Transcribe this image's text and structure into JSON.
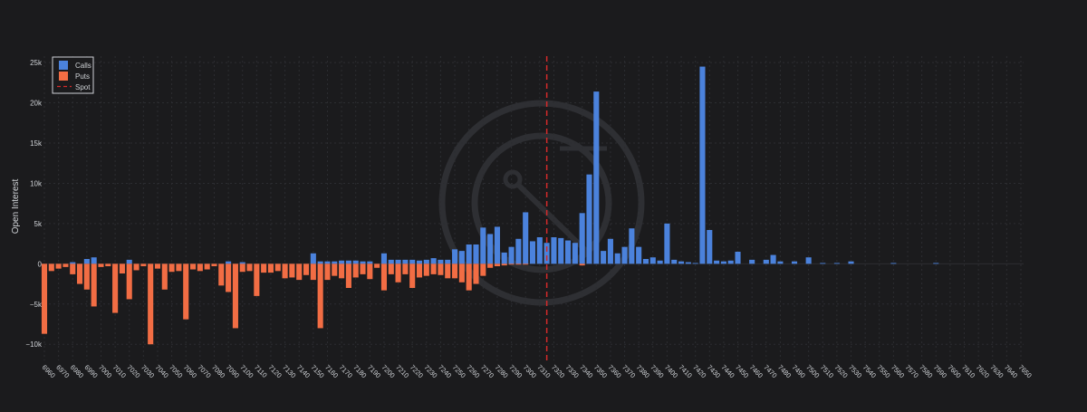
{
  "colors": {
    "background": "#1b1b1d",
    "calls": "#4b82dc",
    "puts": "#f26d44",
    "spot": "#d42a2a",
    "grid": "#2c2d31",
    "text": "#cfd2d6",
    "watermark": "#2e2f33"
  },
  "chart_data": {
    "type": "bar",
    "title": "",
    "xlabel": "",
    "ylabel": "Open Interest",
    "ylim": [
      -12000,
      25800
    ],
    "yticks": [
      -10000,
      -5000,
      0,
      5000,
      10000,
      15000,
      20000,
      25000
    ],
    "ytick_labels": [
      "−10k",
      "−5k",
      "0",
      "5k",
      "10k",
      "15k",
      "20k",
      "25k"
    ],
    "grid": true,
    "legend_position": "top-left",
    "spot": 7315,
    "x_tick_labels": [
      6960,
      6970,
      6980,
      6990,
      7000,
      7010,
      7020,
      7030,
      7040,
      7050,
      7060,
      7070,
      7080,
      7090,
      7100,
      7110,
      7120,
      7130,
      7140,
      7150,
      7160,
      7170,
      7180,
      7190,
      7200,
      7210,
      7220,
      7230,
      7240,
      7250,
      7260,
      7270,
      7280,
      7290,
      7300,
      7310,
      7320,
      7330,
      7340,
      7350,
      7360,
      7370,
      7380,
      7390,
      7400,
      7410,
      7420,
      7430,
      7440,
      7450,
      7460,
      7470,
      7480,
      7490,
      7500,
      7510,
      7520,
      7530,
      7540,
      7550,
      7560,
      7570,
      7580,
      7590,
      7600,
      7610,
      7620,
      7630,
      7640,
      7650
    ],
    "strikes": [
      6960,
      6965,
      6970,
      6975,
      6980,
      6985,
      6990,
      6995,
      7000,
      7005,
      7010,
      7015,
      7020,
      7025,
      7030,
      7035,
      7040,
      7045,
      7050,
      7055,
      7060,
      7065,
      7070,
      7075,
      7080,
      7085,
      7090,
      7095,
      7100,
      7105,
      7110,
      7115,
      7120,
      7125,
      7130,
      7135,
      7140,
      7145,
      7150,
      7155,
      7160,
      7165,
      7170,
      7175,
      7180,
      7185,
      7190,
      7195,
      7200,
      7205,
      7210,
      7215,
      7220,
      7225,
      7230,
      7235,
      7240,
      7245,
      7250,
      7255,
      7260,
      7265,
      7270,
      7275,
      7280,
      7285,
      7290,
      7295,
      7300,
      7305,
      7310,
      7315,
      7320,
      7325,
      7330,
      7335,
      7340,
      7345,
      7350,
      7355,
      7360,
      7365,
      7370,
      7375,
      7380,
      7385,
      7390,
      7395,
      7400,
      7405,
      7410,
      7415,
      7420,
      7425,
      7430,
      7435,
      7440,
      7445,
      7450,
      7455,
      7460,
      7465,
      7470,
      7475,
      7480,
      7485,
      7490,
      7495,
      7500,
      7505,
      7510,
      7515,
      7520,
      7525,
      7530,
      7535,
      7540,
      7545,
      7550,
      7555,
      7560,
      7565,
      7570,
      7575,
      7580,
      7585,
      7590,
      7595,
      7600,
      7605,
      7610,
      7615,
      7620,
      7625,
      7630,
      7635,
      7640,
      7645,
      7650
    ],
    "series": [
      {
        "name": "Calls",
        "values": [
          0,
          0,
          0,
          0,
          200,
          0,
          600,
          800,
          0,
          0,
          0,
          0,
          500,
          0,
          0,
          0,
          0,
          0,
          0,
          0,
          0,
          0,
          0,
          0,
          0,
          0,
          300,
          0,
          200,
          0,
          0,
          0,
          0,
          0,
          0,
          0,
          0,
          0,
          1300,
          300,
          300,
          300,
          400,
          400,
          400,
          300,
          300,
          0,
          1300,
          500,
          500,
          500,
          500,
          400,
          500,
          700,
          500,
          500,
          1800,
          1600,
          2400,
          2400,
          4500,
          3700,
          4600,
          1400,
          2100,
          3100,
          6400,
          2800,
          3300,
          2600,
          3300,
          3200,
          2900,
          2600,
          6300,
          11100,
          21400,
          1600,
          3100,
          1300,
          2100,
          4400,
          2100,
          600,
          800,
          400,
          5000,
          500,
          300,
          200,
          100,
          24500,
          4200,
          400,
          300,
          400,
          1500,
          0,
          500,
          0,
          500,
          1100,
          300,
          0,
          300,
          0,
          800,
          0,
          100,
          0,
          100,
          0,
          300,
          0,
          0,
          0,
          0,
          0,
          100,
          0,
          0,
          0,
          0,
          0,
          100,
          0,
          0,
          0,
          0,
          0,
          0,
          0,
          0,
          0,
          0,
          0,
          0,
          0,
          0
        ],
        "note_on_values": ""
      },
      {
        "name": "Puts",
        "values": [
          -8700,
          -900,
          -600,
          -400,
          -1300,
          -2500,
          -3200,
          -5300,
          -400,
          -300,
          -6100,
          -1200,
          -4400,
          -800,
          -300,
          -10000,
          -600,
          -3200,
          -1000,
          -900,
          -6900,
          -700,
          -900,
          -700,
          -300,
          -2700,
          -3500,
          -8000,
          -1000,
          -900,
          -4000,
          -1100,
          -1100,
          -900,
          -1800,
          -1700,
          -2000,
          -1400,
          -2000,
          -8000,
          -2000,
          -1500,
          -1800,
          -3000,
          -1700,
          -1300,
          -1900,
          -500,
          -3300,
          -1300,
          -2300,
          -1300,
          -3000,
          -1700,
          -1500,
          -1300,
          -1400,
          -1800,
          -1800,
          -2300,
          -3300,
          -2500,
          -1500,
          -500,
          -300,
          -200,
          -100,
          -100,
          -100,
          0,
          0,
          0,
          0,
          0,
          0,
          0,
          -200,
          0,
          0,
          0,
          0,
          0,
          0,
          0,
          0,
          0,
          0,
          0,
          0,
          0,
          0,
          0,
          0,
          0,
          0,
          0,
          0,
          0,
          0,
          0,
          0,
          0,
          0,
          0,
          0,
          0,
          0,
          0,
          0,
          0,
          0,
          0,
          0,
          0,
          0,
          0,
          0,
          0,
          0,
          0,
          0,
          0,
          0,
          0,
          0,
          0,
          0,
          0,
          0,
          0,
          0,
          0,
          0,
          0,
          0,
          0,
          0,
          0,
          0
        ]
      }
    ]
  },
  "legend": {
    "items": [
      {
        "label": "Calls",
        "color": "#4b82dc",
        "kind": "box"
      },
      {
        "label": "Puts",
        "color": "#f26d44",
        "kind": "box"
      },
      {
        "label": "Spot",
        "color": "#d42a2a",
        "kind": "dash"
      }
    ]
  }
}
